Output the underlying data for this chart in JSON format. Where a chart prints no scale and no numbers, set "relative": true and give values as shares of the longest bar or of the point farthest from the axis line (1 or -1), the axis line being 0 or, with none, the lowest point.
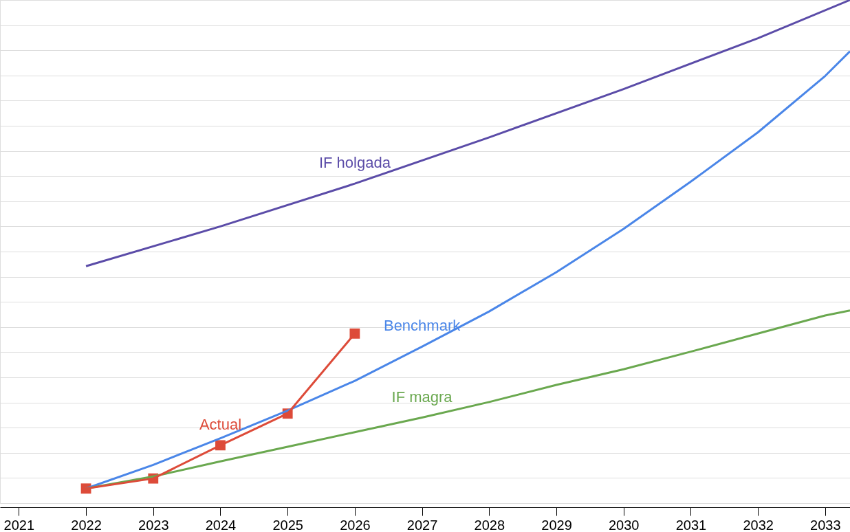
{
  "chart_data": {
    "type": "line",
    "relative": true,
    "grid": "y",
    "xlim": [
      2020.72,
      2033.37
    ],
    "xticks": [
      2021,
      2022,
      2023,
      2024,
      2025,
      2026,
      2027,
      2028,
      2029,
      2030,
      2031,
      2032,
      2033
    ],
    "series": [
      {
        "name": "IF holgada",
        "color": "#5b4ca8",
        "marker": "none",
        "x": [
          2022,
          2024,
          2026,
          2028,
          2030,
          2032,
          2033.37
        ],
        "values": [
          0.471,
          0.55,
          0.635,
          0.727,
          0.823,
          0.924,
          1.0
        ]
      },
      {
        "name": "Benchmark",
        "color": "#4a86e8",
        "marker": "none",
        "x": [
          2022,
          2023,
          2024,
          2025,
          2026,
          2027,
          2028,
          2029,
          2030,
          2031,
          2032,
          2033,
          2033.37
        ],
        "values": [
          0.029,
          0.076,
          0.129,
          0.184,
          0.243,
          0.311,
          0.381,
          0.459,
          0.545,
          0.639,
          0.737,
          0.849,
          0.898
        ]
      },
      {
        "name": "IF magra",
        "color": "#6aa84f",
        "marker": "none",
        "x": [
          2022,
          2023,
          2024,
          2025,
          2026,
          2027,
          2028,
          2029,
          2030,
          2031,
          2032,
          2033,
          2033.37
        ],
        "values": [
          0.029,
          0.053,
          0.083,
          0.112,
          0.141,
          0.17,
          0.201,
          0.235,
          0.266,
          0.301,
          0.337,
          0.373,
          0.383
        ]
      },
      {
        "name": "Actual",
        "color": "#dd4b39",
        "marker": "square",
        "x": [
          2022,
          2023,
          2024,
          2025,
          2026
        ],
        "values": [
          0.029,
          0.049,
          0.115,
          0.178,
          0.337
        ]
      }
    ]
  }
}
